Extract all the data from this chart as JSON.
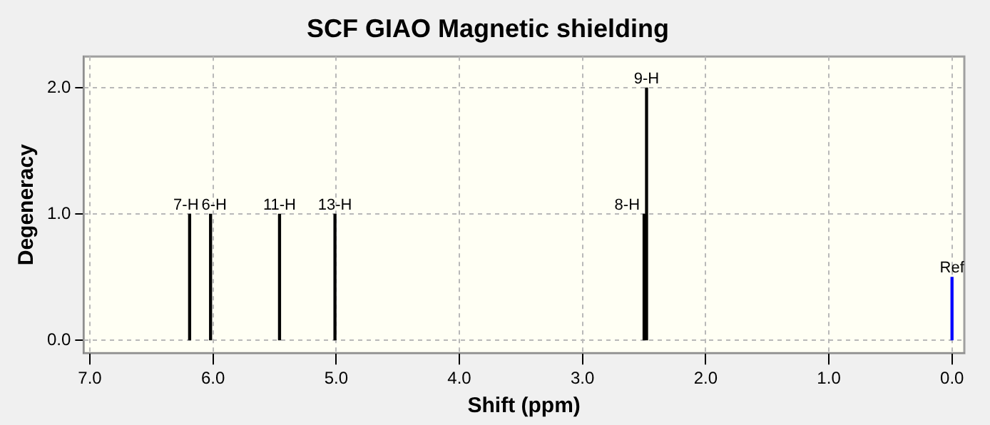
{
  "chart_data": {
    "type": "bar",
    "title": "SCF GIAO Magnetic shielding",
    "xlabel": "Shift (ppm)",
    "ylabel": "Degeneracy",
    "series": [
      {
        "color": "#000000",
        "x": [
          6.19,
          6.02,
          5.46,
          5.01,
          2.5,
          2.48
        ],
        "values": [
          1,
          1,
          1,
          1,
          1,
          2
        ]
      },
      {
        "color": "#0000ff",
        "x": [
          0
        ],
        "values": [
          0.5
        ]
      }
    ],
    "xlim": [
      7.05,
      -0.1
    ],
    "xticks": [
      {
        "value": 7,
        "label": "7.0"
      },
      {
        "value": 6,
        "label": "6.0"
      },
      {
        "value": 5,
        "label": "5.0"
      },
      {
        "value": 4,
        "label": "4.0"
      },
      {
        "value": 3,
        "label": "3.0"
      },
      {
        "value": 2,
        "label": "2.0"
      },
      {
        "value": 1,
        "label": "1.0"
      },
      {
        "value": 0,
        "label": "0.0"
      }
    ],
    "ylim": [
      -0.1,
      2.25
    ],
    "yticks": [
      {
        "value": 0,
        "label": "0.0"
      },
      {
        "value": 1,
        "label": "1.0"
      },
      {
        "value": 2,
        "label": "2.0"
      }
    ],
    "grid": true,
    "annotations": [
      {
        "text": "7-H",
        "x": 6.19,
        "y": 1
      },
      {
        "text": "6-H",
        "x": 6.02,
        "y": 1
      },
      {
        "text": "11-H",
        "x": 5.46,
        "y": 1
      },
      {
        "text": "13-H",
        "x": 5.01,
        "y": 1
      },
      {
        "text": "8-H",
        "x": 2.5,
        "y": 1
      },
      {
        "text": "9-H",
        "x": 2.48,
        "y": 2
      },
      {
        "text": "Ref",
        "x": 0,
        "y": 0.5
      }
    ]
  }
}
